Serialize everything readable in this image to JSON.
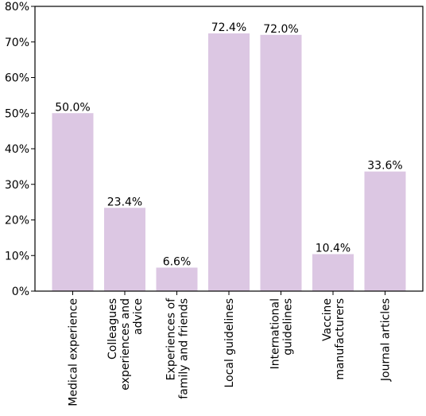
{
  "chart_data": {
    "type": "bar",
    "categories": [
      [
        "Medical experience"
      ],
      [
        "Colleagues",
        "experiences and",
        "advice"
      ],
      [
        "Experiences of",
        "family and friends"
      ],
      [
        "Local guidelines"
      ],
      [
        "International",
        "guidelines"
      ],
      [
        "Vaccine",
        "manufacturers"
      ],
      [
        "Journal articles"
      ]
    ],
    "values": [
      50.0,
      23.4,
      6.6,
      72.4,
      72.0,
      10.4,
      33.6
    ],
    "data_labels": [
      "50.0%",
      "23.4%",
      "6.6%",
      "72.4%",
      "72.0%",
      "10.4%",
      "33.6%"
    ],
    "ylim": [
      0,
      80
    ],
    "yticks": [
      0,
      10,
      20,
      30,
      40,
      50,
      60,
      70,
      80
    ],
    "ytick_labels": [
      "0%",
      "10%",
      "20%",
      "30%",
      "40%",
      "50%",
      "60%",
      "70%",
      "80%"
    ],
    "bar_color": "#dcc7e3",
    "grid": false,
    "title": "",
    "xlabel": "",
    "ylabel": ""
  }
}
